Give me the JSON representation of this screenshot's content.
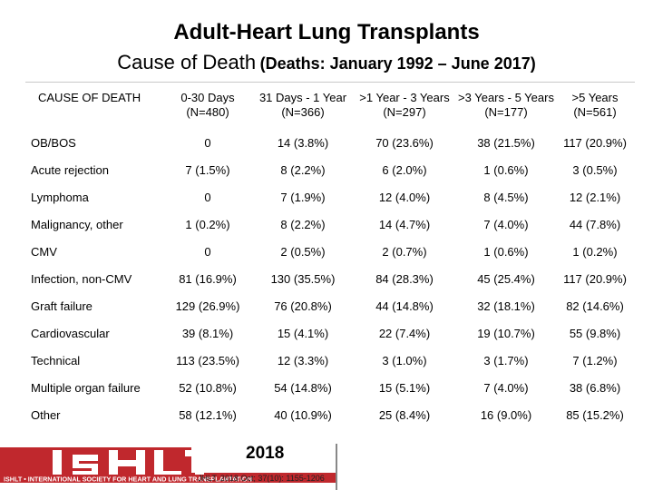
{
  "title": "Adult-Heart Lung Transplants",
  "subtitle_main": "Cause of Death",
  "subtitle_paren": "(Deaths: January 1992 – June 2017)",
  "table": {
    "headers": [
      {
        "line1": "CAUSE OF DEATH",
        "line2": ""
      },
      {
        "line1": "0-30 Days",
        "line2": "(N=480)"
      },
      {
        "line1": "31 Days - 1 Year",
        "line2": "(N=366)"
      },
      {
        "line1": ">1 Year - 3 Years",
        "line2": "(N=297)"
      },
      {
        "line1": ">3 Years - 5 Years",
        "line2": "(N=177)"
      },
      {
        "line1": ">5 Years",
        "line2": "(N=561)"
      }
    ],
    "rows": [
      [
        "OB/BOS",
        "0",
        "14 (3.8%)",
        "70 (23.6%)",
        "38 (21.5%)",
        "117 (20.9%)"
      ],
      [
        "Acute rejection",
        "7 (1.5%)",
        "8 (2.2%)",
        "6 (2.0%)",
        "1 (0.6%)",
        "3 (0.5%)"
      ],
      [
        "Lymphoma",
        "0",
        "7 (1.9%)",
        "12 (4.0%)",
        "8 (4.5%)",
        "12 (2.1%)"
      ],
      [
        "Malignancy, other",
        "1 (0.2%)",
        "8 (2.2%)",
        "14 (4.7%)",
        "7 (4.0%)",
        "44 (7.8%)"
      ],
      [
        "CMV",
        "0",
        "2 (0.5%)",
        "2 (0.7%)",
        "1 (0.6%)",
        "1 (0.2%)"
      ],
      [
        "Infection, non-CMV",
        "81 (16.9%)",
        "130 (35.5%)",
        "84 (28.3%)",
        "45 (25.4%)",
        "117 (20.9%)"
      ],
      [
        "Graft failure",
        "129 (26.9%)",
        "76 (20.8%)",
        "44 (14.8%)",
        "32 (18.1%)",
        "82 (14.6%)"
      ],
      [
        "Cardiovascular",
        "39 (8.1%)",
        "15 (4.1%)",
        "22 (7.4%)",
        "19 (10.7%)",
        "55 (9.8%)"
      ],
      [
        "Technical",
        "113 (23.5%)",
        "12 (3.3%)",
        "3 (1.0%)",
        "3 (1.7%)",
        "7 (1.2%)"
      ],
      [
        "Multiple organ failure",
        "52 (10.8%)",
        "54 (14.8%)",
        "15 (5.1%)",
        "7 (4.0%)",
        "38 (6.8%)"
      ],
      [
        "Other",
        "58 (12.1%)",
        "40 (10.9%)",
        "25 (8.4%)",
        "16 (9.0%)",
        "85 (15.2%)"
      ]
    ]
  },
  "logo": {
    "wordmark": "ISHLT",
    "banner": "ISHLT • INTERNATIONAL SOCIETY FOR HEART AND LUNG TRANSPLANTATION",
    "color": "#c0282d"
  },
  "year": "2018",
  "citation": "JHLT. 2018 Oct; 37(10): 1155-1206"
}
